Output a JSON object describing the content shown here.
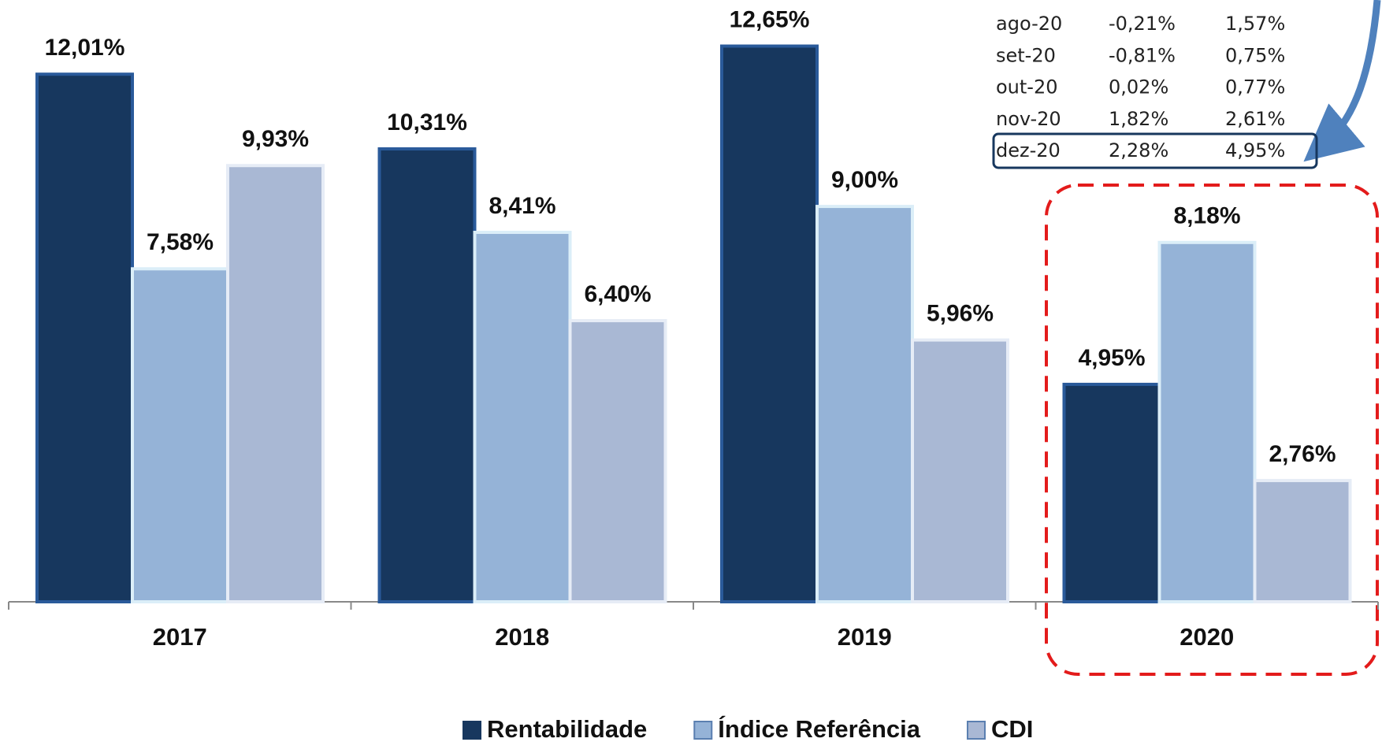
{
  "chart_data": {
    "type": "bar",
    "categories": [
      "2017",
      "2018",
      "2019",
      "2020"
    ],
    "series": [
      {
        "name": "Rentabilidade",
        "color": "#17375e",
        "values": [
          12.01,
          10.31,
          12.65,
          4.95
        ],
        "value_labels": [
          "12,01%",
          "10,31%",
          "12,65%",
          "4,95%"
        ]
      },
      {
        "name": "Índice Referência",
        "color": "#95b3d7",
        "values": [
          7.58,
          8.41,
          9.0,
          8.18
        ],
        "value_labels": [
          "7,58%",
          "8,41%",
          "9,00%",
          "8,18%"
        ]
      },
      {
        "name": "CDI",
        "color": "#a9b8d4",
        "values": [
          9.93,
          6.4,
          5.96,
          2.76
        ],
        "value_labels": [
          "9,93%",
          "6,40%",
          "5,96%",
          "2,76%"
        ]
      }
    ],
    "ylim": [
      0,
      13
    ]
  },
  "table": {
    "rows": [
      [
        "ago-20",
        "-0,21%",
        "1,57%"
      ],
      [
        "set-20",
        "-0,81%",
        "0,75%"
      ],
      [
        "out-20",
        "0,02%",
        "0,77%"
      ],
      [
        "nov-20",
        "1,82%",
        "2,61%"
      ],
      [
        "dez-20",
        "2,28%",
        "4,95%"
      ]
    ]
  }
}
